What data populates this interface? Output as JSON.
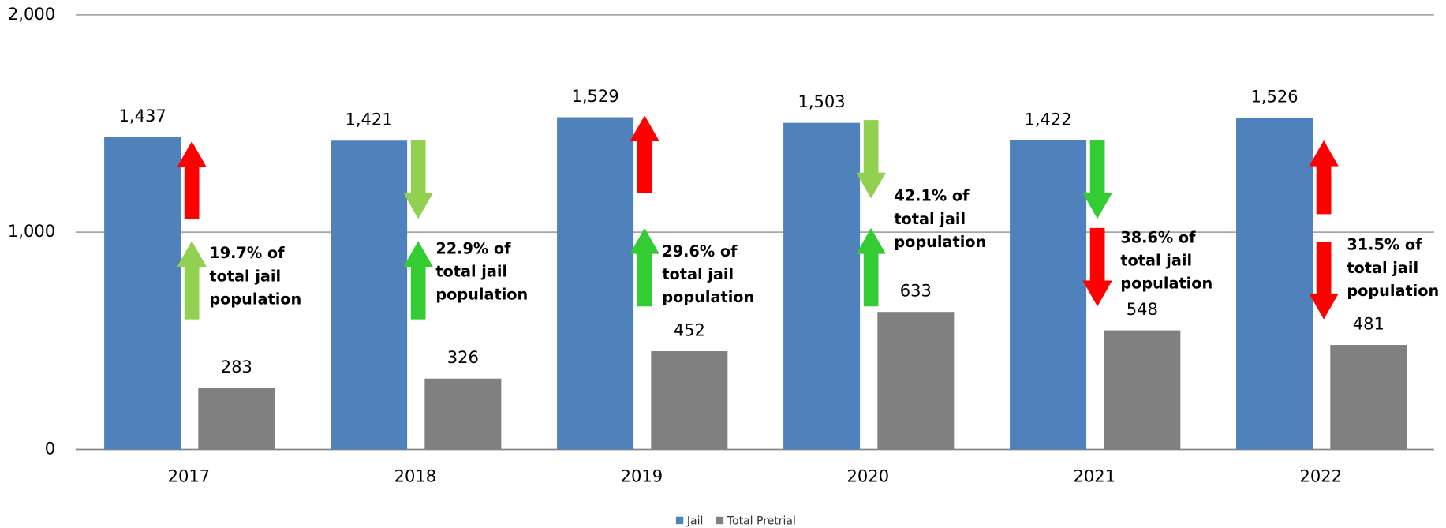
{
  "chart_data": {
    "type": "bar",
    "categories": [
      "2017",
      "2018",
      "2019",
      "2020",
      "2021",
      "2022"
    ],
    "series": [
      {
        "name": "Jail",
        "color": "#4f81bd",
        "values": [
          1437,
          1421,
          1529,
          1503,
          1422,
          1526
        ],
        "value_labels": [
          "1,437",
          "1,421",
          "1,529",
          "1,503",
          "1,422",
          "1,526"
        ]
      },
      {
        "name": "Total Pretrial",
        "color": "#808080",
        "values": [
          283,
          326,
          452,
          633,
          548,
          481
        ]
      }
    ],
    "ylim": [
      0,
      2000
    ],
    "yticks": [
      0,
      {
        "value": 1000,
        "label": "1,000"
      },
      {
        "value": 2000,
        "label": "2,000"
      }
    ],
    "grid": true,
    "legend": "bottom",
    "annotations": [
      {
        "lines": [
          "19.7% of",
          "total jail",
          "population"
        ],
        "arrows": [
          {
            "direction": "up",
            "color": "#ff0000"
          },
          {
            "direction": "up",
            "color": "#92d050"
          }
        ]
      },
      {
        "lines": [
          "22.9% of",
          "total jail",
          "population"
        ],
        "arrows": [
          {
            "direction": "down",
            "color": "#92d050"
          },
          {
            "direction": "up",
            "color": "#33cc33"
          }
        ]
      },
      {
        "lines": [
          "29.6% of",
          "total jail",
          "population"
        ],
        "arrows": [
          {
            "direction": "up",
            "color": "#ff0000"
          },
          {
            "direction": "up",
            "color": "#33cc33"
          }
        ]
      },
      {
        "lines": [
          "42.1% of",
          "total jail",
          "population"
        ],
        "arrows": [
          {
            "direction": "down",
            "color": "#92d050"
          },
          {
            "direction": "up",
            "color": "#33cc33"
          }
        ]
      },
      {
        "lines": [
          "38.6% of",
          "total jail",
          "population"
        ],
        "arrows": [
          {
            "direction": "down",
            "color": "#33cc33"
          },
          {
            "direction": "down",
            "color": "#ff0000"
          }
        ]
      },
      {
        "lines": [
          "31.5% of",
          "total jail",
          "population"
        ],
        "arrows": [
          {
            "direction": "up",
            "color": "#ff0000"
          },
          {
            "direction": "down",
            "color": "#ff0000"
          }
        ]
      }
    ]
  }
}
